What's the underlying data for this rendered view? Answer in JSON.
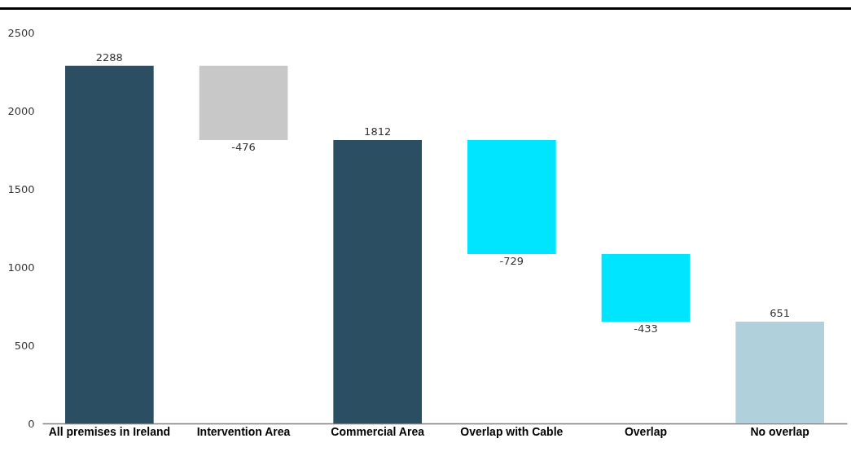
{
  "chart_data": {
    "type": "bar",
    "categories": [
      "All premises in Ireland",
      "Intervention Area",
      "Commercial Area",
      "Overlap with Cable",
      "Overlap",
      "No overlap"
    ],
    "values": [
      2288,
      -476,
      1812,
      -729,
      -433,
      651
    ],
    "base": [
      0,
      2288,
      0,
      1812,
      1083,
      0
    ],
    "colors": [
      "#2c4e62",
      "#c8c8c8",
      "#2c4e62",
      "#00e5ff",
      "#00e5ff",
      "#b0d0dc"
    ],
    "ylim": [
      0,
      2500
    ],
    "yticks": [
      0,
      500,
      1000,
      1500,
      2000,
      2500
    ],
    "data_labels": true,
    "grid": false
  }
}
